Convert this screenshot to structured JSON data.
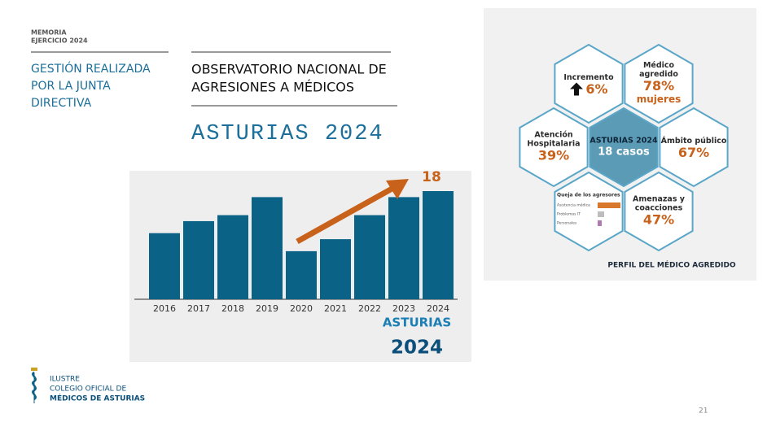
{
  "header": {
    "kicker": [
      "MEMORIA",
      "EJERCICIO 2024"
    ],
    "section": [
      "GESTIÓN REALIZADA",
      "POR LA JUNTA",
      "DIRECTIVA"
    ]
  },
  "title": {
    "lines": [
      "OBSERVATORIO NACIONAL DE",
      "AGRESIONES A MÉDICOS"
    ],
    "subtitle": "ASTURIAS 2024"
  },
  "chart_data": {
    "type": "bar",
    "categories": [
      "2016",
      "2017",
      "2018",
      "2019",
      "2020",
      "2021",
      "2022",
      "2023",
      "2024"
    ],
    "values": [
      11,
      13,
      14,
      17,
      8,
      10,
      14,
      17,
      18
    ],
    "color": "#0b6287",
    "caption": [
      "ASTURIAS",
      "2024"
    ]
  },
  "profile": {
    "cells": [
      {
        "label": [
          "Incremento"
        ],
        "value": "6%"
      },
      {
        "label": [
          "Médico",
          "agredido"
        ],
        "value": "78%",
        "note": "mujeres"
      },
      {
        "label": [
          "Atención",
          "Hospitalaria"
        ],
        "value": "39%"
      },
      {
        "label": [
          "Ámbito público"
        ],
        "value": "67%"
      },
      {
        "label": [
          "Amenazas y",
          "coacciones"
        ],
        "value": "47%"
      }
    ],
    "center": [
      "ASTURIAS 2024",
      "18 casos"
    ],
    "complaints": {
      "title": "Queja de los agresores",
      "categories": [
        "Asistencia médica",
        "Problemas IT",
        "Personales"
      ],
      "values": [
        28,
        8,
        5
      ]
    },
    "footer": "PERFIL DEL MÉDICO AGREDIDO"
  },
  "logo": [
    "ILUSTRE",
    "COLEGIO OFICIAL DE",
    "MÉDICOS DE ASTURIAS"
  ],
  "page_number": "21"
}
